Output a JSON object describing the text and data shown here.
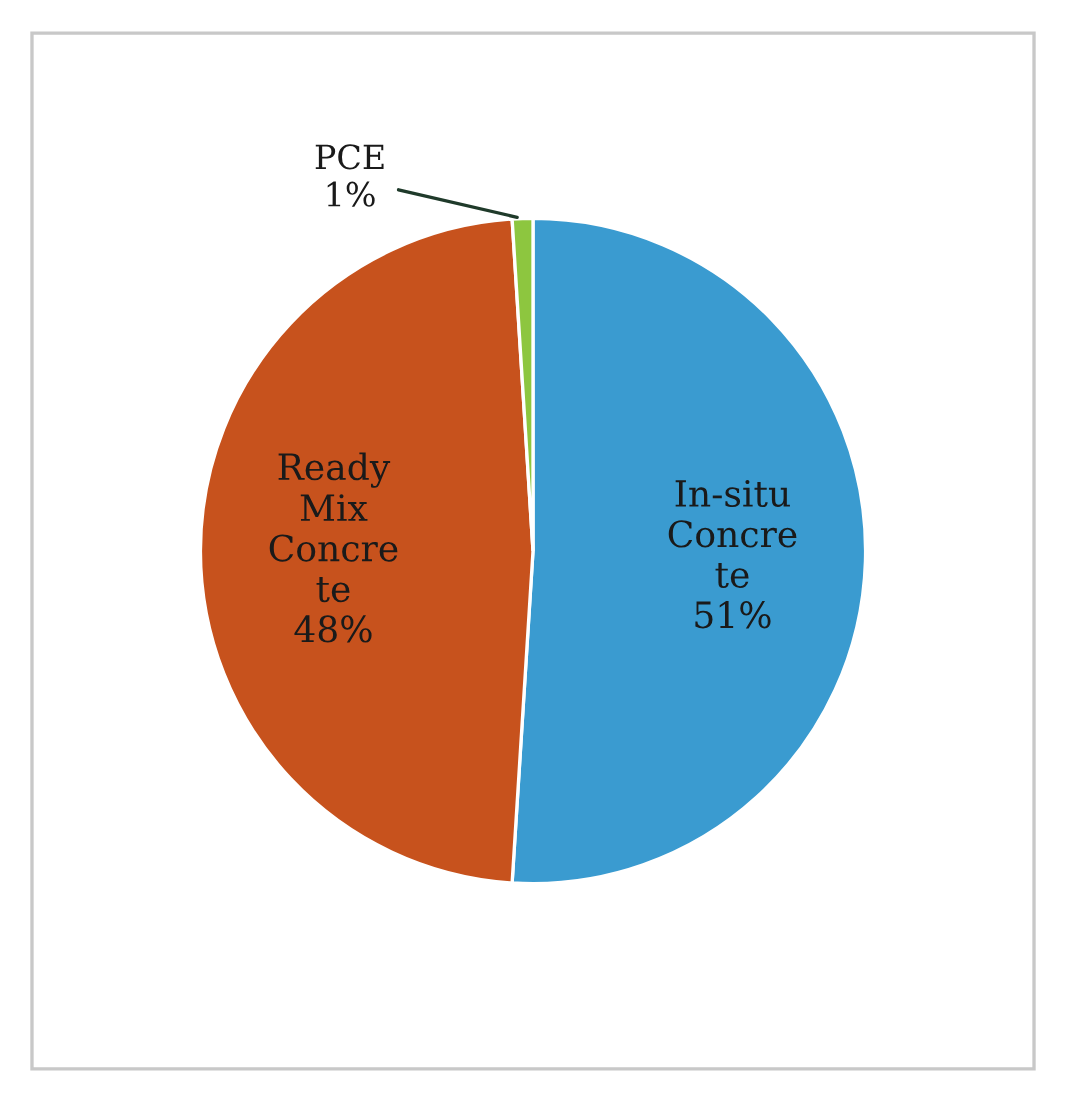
{
  "chart_data": {
    "type": "pie",
    "categories": [
      "In-situ\nConcre\nte",
      "Ready\nMix\nConcre\nte",
      "PCE"
    ],
    "values": [
      51,
      48,
      1
    ],
    "value_labels": [
      "51%",
      "48%",
      "1%"
    ],
    "colors": [
      "#3a9bd0",
      "#c7521d",
      "#8dc63f"
    ],
    "legend": false
  }
}
